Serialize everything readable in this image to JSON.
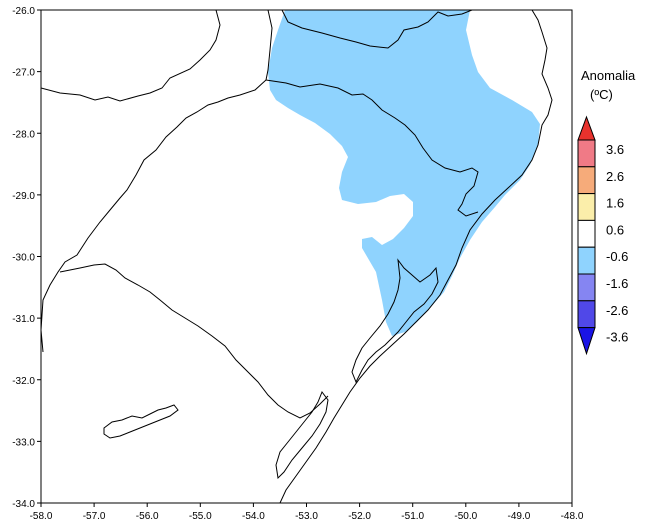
{
  "map": {
    "x_ticks": [
      "-58.0",
      "-57.0",
      "-56.0",
      "-55.0",
      "-54.0",
      "-53.0",
      "-52.0",
      "-51.0",
      "-50.0",
      "-49.0",
      "-48.0"
    ],
    "y_ticks": [
      "-26.0",
      "-27.0",
      "-28.0",
      "-29.0",
      "-30.0",
      "-31.0",
      "-32.0",
      "-33.0",
      "-34.0"
    ],
    "xlim": [
      -58.0,
      -48.0
    ],
    "ylim": [
      -34.0,
      -26.0
    ],
    "background_color": "#ffffff",
    "shaded_class": "-1.6 to -0.6",
    "shaded_color": "#8fd3fe"
  },
  "legend": {
    "title_line1": "Anomalia",
    "title_line2": "(ºC)",
    "labels": [
      "3.6",
      "2.6",
      "1.6",
      "0.6",
      "-0.6",
      "-1.6",
      "-2.6",
      "-3.6"
    ],
    "colors": [
      "#e8322d",
      "#f07a86",
      "#f6ab7a",
      "#fbeeaa",
      "#ffffff",
      "#8fd3fe",
      "#8585f2",
      "#5048e8",
      "#1a14e6"
    ]
  }
}
